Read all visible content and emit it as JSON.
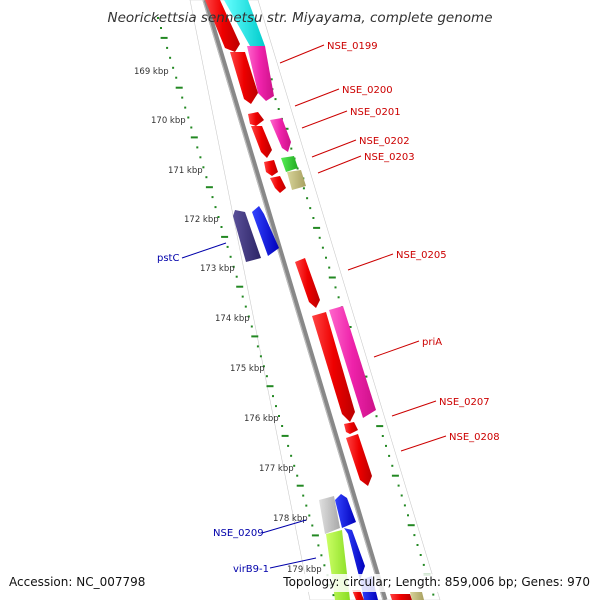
{
  "title": "Neorickettsia sennetsu str. Miyayama, complete genome",
  "footer": {
    "accession": "Accession: NC_007798",
    "summary": "Topology: circular; Length: 859,006 bp; Genes: 970"
  },
  "colors": {
    "forward_label": "#cc0000",
    "reverse_label": "#0000aa",
    "tick": "#228822",
    "backbone": "#888888"
  },
  "kbp_ticks": [
    "169 kbp",
    "170 kbp",
    "171 kbp",
    "172 kbp",
    "173 kbp",
    "174 kbp",
    "175 kbp",
    "176 kbp",
    "177 kbp",
    "178 kbp",
    "179 kbp"
  ],
  "gene_labels_forward": [
    "NSE_0199",
    "NSE_0200",
    "NSE_0201",
    "NSE_0202",
    "NSE_0203",
    "NSE_0205",
    "priA",
    "NSE_0207",
    "NSE_0208"
  ],
  "gene_labels_reverse": [
    "pstC",
    "NSE_0209",
    "virB9-1"
  ]
}
